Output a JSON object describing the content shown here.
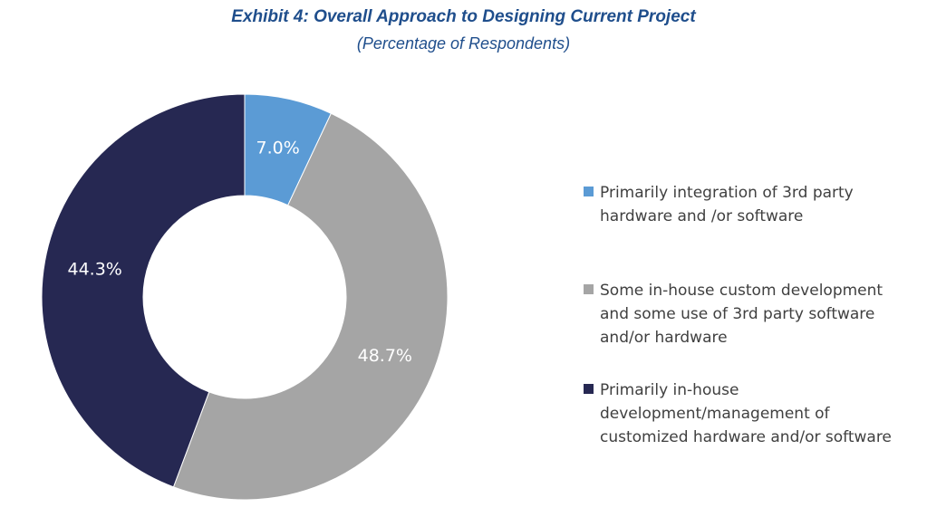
{
  "chart_data": {
    "type": "pie",
    "variant": "donut",
    "title": "Exhibit 4: Overall Approach to Designing Current Project",
    "subtitle": "(Percentage of Respondents)",
    "categories": [
      "Primarily integration of 3rd party hardware and /or software",
      "Some in-house custom development and some use of 3rd party software and/or hardware",
      "Primarily in-house development/management of customized hardware and/or software"
    ],
    "values": [
      7.0,
      48.7,
      44.3
    ],
    "labels": [
      "7.0%",
      "48.7%",
      "44.3%"
    ],
    "colors": [
      "#5b9bd5",
      "#a5a5a5",
      "#262852"
    ],
    "legend_position": "right",
    "start_angle": "top, clockwise"
  },
  "legend": {
    "items": [
      {
        "lines": [
          "Primarily integration of 3rd party",
          "hardware and /or software"
        ]
      },
      {
        "lines": [
          "Some in-house custom development",
          "and some use of 3rd party software",
          "and/or hardware"
        ]
      },
      {
        "lines": [
          "Primarily in-house",
          "development/management of",
          "customized hardware and/or software"
        ]
      }
    ]
  }
}
